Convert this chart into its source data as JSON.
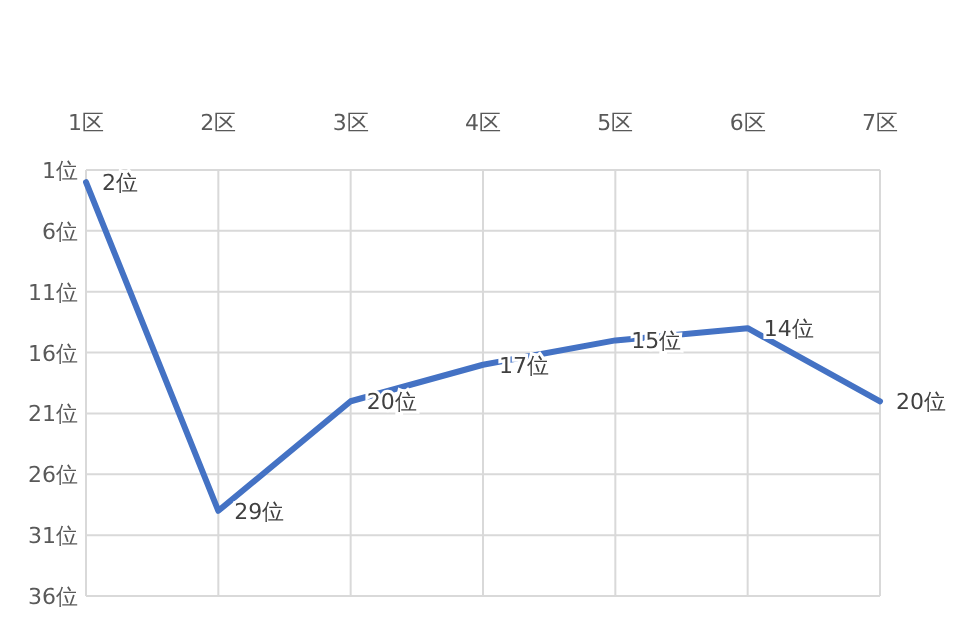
{
  "chart_data": {
    "type": "line",
    "categories": [
      "1区",
      "2区",
      "3区",
      "4区",
      "5区",
      "6区",
      "7区"
    ],
    "series": [
      {
        "color": "#4472c4",
        "values": [
          2,
          29,
          20,
          17,
          15,
          14,
          20
        ],
        "value_labels": [
          "2位",
          "29位",
          "20位",
          "17位",
          "15位",
          "14位",
          "20位"
        ]
      }
    ],
    "ylim": [
      36,
      1
    ],
    "yticks": [
      {
        "value": 1,
        "label": "1位"
      },
      {
        "value": 6,
        "label": "6位"
      },
      {
        "value": 11,
        "label": "11位"
      },
      {
        "value": 16,
        "label": "16位"
      },
      {
        "value": 21,
        "label": "21位"
      },
      {
        "value": 26,
        "label": "26位"
      },
      {
        "value": 31,
        "label": "31位"
      },
      {
        "value": 36,
        "label": "36位"
      }
    ],
    "grid": true,
    "marker": "none",
    "line_style": "solid"
  }
}
